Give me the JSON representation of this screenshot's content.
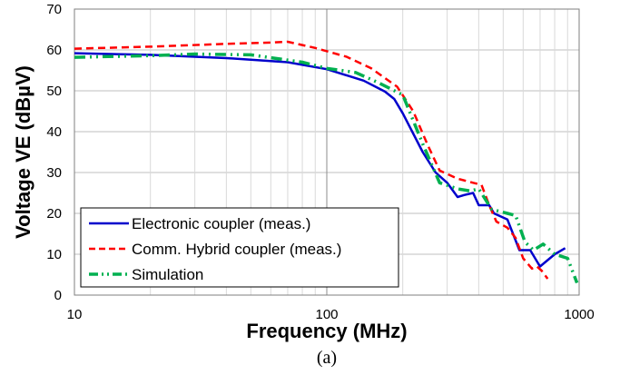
{
  "chart_data": {
    "type": "line",
    "xlabel": "Frequency (MHz)",
    "ylabel": "Voltage VE (dBµV)",
    "xscale": "log",
    "xlim": [
      10,
      1000
    ],
    "ylim": [
      0,
      70
    ],
    "x_ticks": [
      10,
      100,
      1000
    ],
    "x_tick_labels": [
      "10",
      "100",
      "1000"
    ],
    "y_ticks": [
      0,
      10,
      20,
      30,
      40,
      50,
      60,
      70
    ],
    "y_tick_labels": [
      "0",
      "10",
      "20",
      "30",
      "40",
      "50",
      "60",
      "70"
    ],
    "grid": {
      "y_major": true,
      "x_major": true,
      "x_minor_log": true
    },
    "legend_position": "bottom-left",
    "caption": "(a)",
    "series": [
      {
        "name": "Electronic coupler (meas.)",
        "color": "#0000cc",
        "dash": "solid",
        "points": [
          [
            10,
            59.2
          ],
          [
            20,
            58.8
          ],
          [
            40,
            58.0
          ],
          [
            70,
            57.0
          ],
          [
            100,
            55.3
          ],
          [
            140,
            52.5
          ],
          [
            170,
            49.8
          ],
          [
            185,
            48.0
          ],
          [
            200,
            44.5
          ],
          [
            240,
            35.0
          ],
          [
            270,
            30.0
          ],
          [
            300,
            27.5
          ],
          [
            330,
            24.0
          ],
          [
            350,
            24.5
          ],
          [
            380,
            25.0
          ],
          [
            400,
            22.0
          ],
          [
            440,
            22.0
          ],
          [
            460,
            20.0
          ],
          [
            520,
            18.5
          ],
          [
            580,
            11.0
          ],
          [
            640,
            11.0
          ],
          [
            700,
            7.0
          ],
          [
            800,
            10.0
          ],
          [
            880,
            11.5
          ]
        ]
      },
      {
        "name": "Comm. Hybrid coupler (meas.)",
        "color": "#ff0000",
        "dash": "dashed",
        "points": [
          [
            10,
            60.3
          ],
          [
            20,
            60.8
          ],
          [
            40,
            61.5
          ],
          [
            60,
            61.8
          ],
          [
            70,
            62.0
          ],
          [
            90,
            60.5
          ],
          [
            120,
            58.3
          ],
          [
            150,
            55.5
          ],
          [
            190,
            51.0
          ],
          [
            220,
            45.0
          ],
          [
            250,
            37.0
          ],
          [
            280,
            30.5
          ],
          [
            330,
            28.5
          ],
          [
            380,
            27.5
          ],
          [
            410,
            27.0
          ],
          [
            440,
            22.0
          ],
          [
            470,
            18.0
          ],
          [
            520,
            16.5
          ],
          [
            560,
            14.0
          ],
          [
            600,
            9.0
          ],
          [
            650,
            6.5
          ],
          [
            680,
            7.0
          ],
          [
            710,
            6.0
          ],
          [
            750,
            4.0
          ]
        ]
      },
      {
        "name": "Simulation",
        "color": "#00b050",
        "dash": "dashdotdot",
        "points": [
          [
            10,
            58.2
          ],
          [
            20,
            58.6
          ],
          [
            30,
            59.0
          ],
          [
            50,
            58.8
          ],
          [
            80,
            57.0
          ],
          [
            100,
            55.5
          ],
          [
            130,
            54.5
          ],
          [
            160,
            52.0
          ],
          [
            200,
            49.0
          ],
          [
            240,
            37.0
          ],
          [
            280,
            27.5
          ],
          [
            330,
            26.0
          ],
          [
            370,
            25.5
          ],
          [
            400,
            26.0
          ],
          [
            450,
            21.0
          ],
          [
            520,
            20.0
          ],
          [
            560,
            19.5
          ],
          [
            610,
            13.0
          ],
          [
            660,
            11.0
          ],
          [
            720,
            12.5
          ],
          [
            800,
            10.0
          ],
          [
            900,
            9.0
          ],
          [
            980,
            3.0
          ]
        ]
      }
    ]
  }
}
